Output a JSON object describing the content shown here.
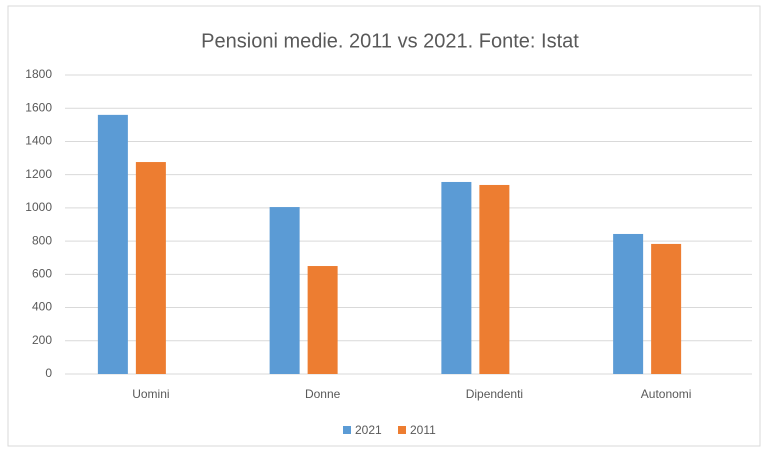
{
  "chart_data": {
    "type": "bar",
    "title": "Pensioni medie.  2011 vs 2021. Fonte: Istat",
    "categories": [
      "Uomini",
      "Donne",
      "Dipendenti",
      "Autonomi"
    ],
    "series": [
      {
        "name": "2021",
        "color": "#5b9bd5",
        "values": [
          1560,
          1005,
          1156,
          843
        ]
      },
      {
        "name": "2011",
        "color": "#ed7d31",
        "values": [
          1276,
          650,
          1138,
          783
        ]
      }
    ],
    "ylim": [
      0,
      1800
    ],
    "yticks": [
      0,
      200,
      400,
      600,
      800,
      1000,
      1200,
      1400,
      1600,
      1800
    ],
    "grid": true,
    "legend": "bottom"
  }
}
